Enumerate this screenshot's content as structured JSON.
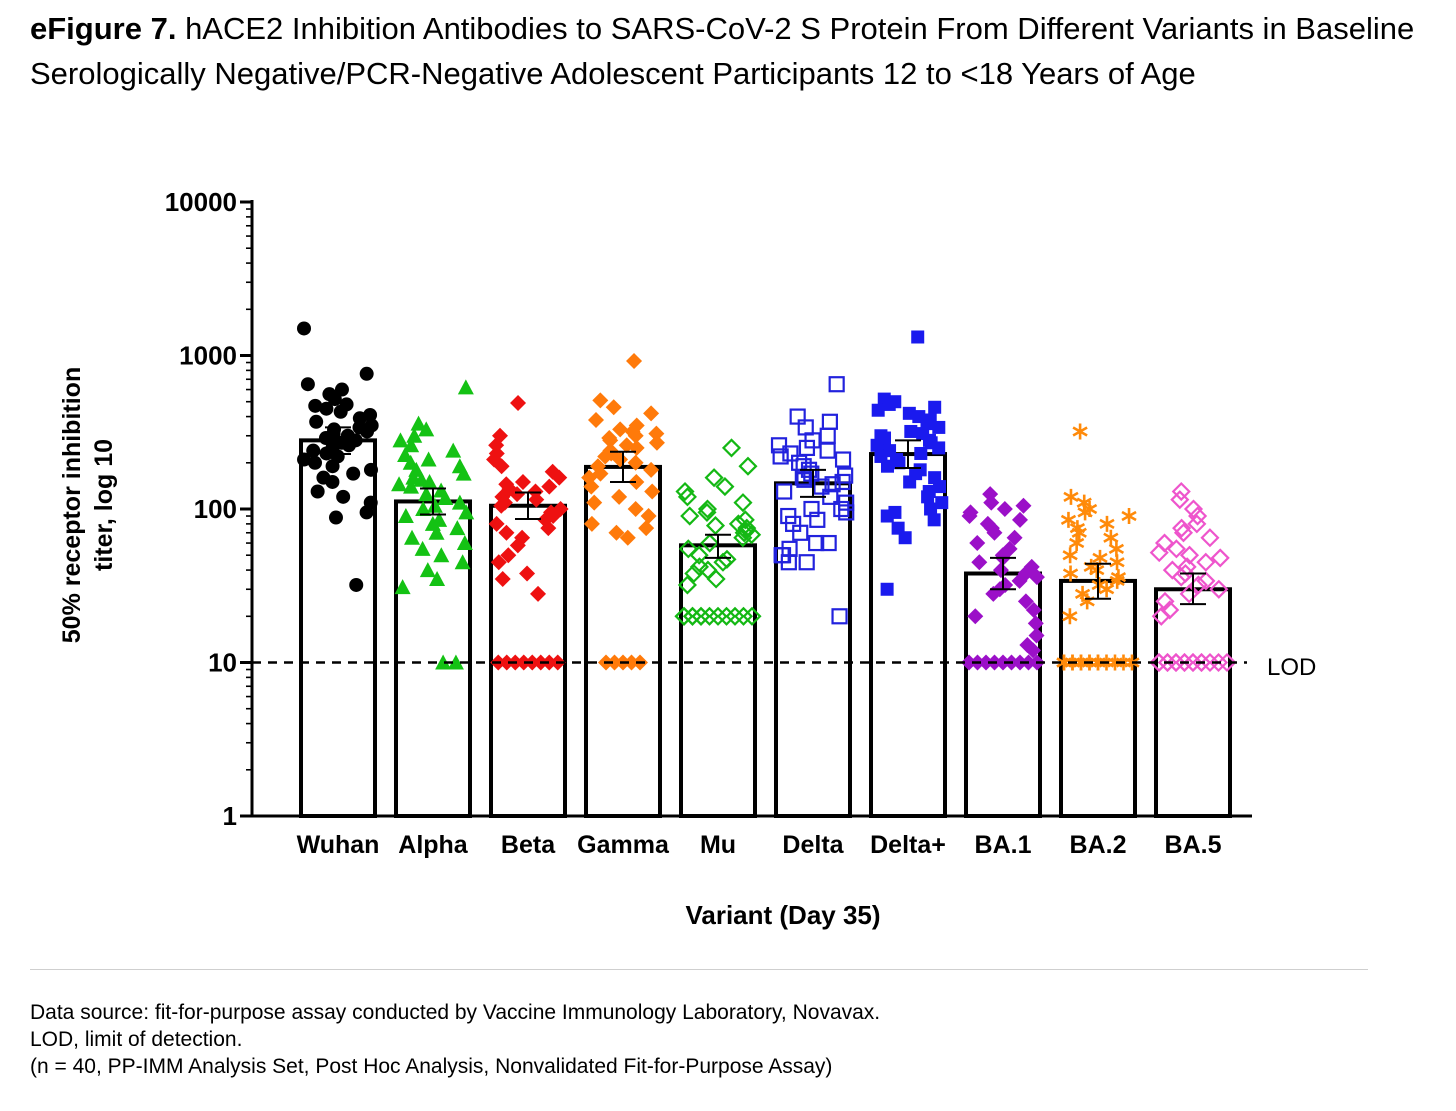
{
  "figure": {
    "label": "eFigure 7.",
    "title": "hACE2 Inhibition Antibodies to SARS-CoV-2 S Protein From Different Variants in Baseline Serologically Negative/PCR-Negative Adolescent Participants 12 to <18 Years of Age"
  },
  "chart_data": {
    "type": "bar",
    "xlabel": "Variant (Day 35)",
    "ylabel_lines": [
      "50% receptor inhibition",
      "titer, log 10"
    ],
    "yscale": "log",
    "ylim": [
      1,
      10000
    ],
    "yticks": [
      1,
      10,
      100,
      1000,
      10000
    ],
    "ytick_labels": [
      "1",
      "10",
      "100",
      "1000",
      "10000"
    ],
    "reference_line": {
      "value": 10,
      "label": "LOD",
      "style": "dashed"
    },
    "categories": [
      "Wuhan",
      "Alpha",
      "Beta",
      "Gamma",
      "Mu",
      "Delta",
      "Delta+",
      "BA.1",
      "BA.2",
      "BA.5"
    ],
    "values": [
      280,
      112,
      105,
      188,
      58,
      147,
      228,
      38,
      34,
      30
    ],
    "error_bars": [
      [
        228,
        340
      ],
      [
        92,
        136
      ],
      [
        86,
        128
      ],
      [
        150,
        236
      ],
      [
        48,
        68
      ],
      [
        120,
        180
      ],
      [
        185,
        280
      ],
      [
        30,
        48
      ],
      [
        26,
        44
      ],
      [
        24,
        38
      ]
    ],
    "series_colors": [
      "#000000",
      "#14c214",
      "#ee1111",
      "#ff7a0a",
      "#14b814",
      "#2222dd",
      "#1a1aee",
      "#9b10c8",
      "#ff8a0a",
      "#ee55cc"
    ],
    "markers": [
      "circle",
      "triangle",
      "diamond",
      "diamond",
      "diamond-open",
      "square-open",
      "square",
      "diamond",
      "asterisk",
      "diamond-open"
    ],
    "points": [
      [
        1500,
        760,
        650,
        600,
        560,
        520,
        480,
        470,
        450,
        430,
        410,
        390,
        370,
        350,
        340,
        330,
        320,
        310,
        300,
        290,
        280,
        270,
        260,
        250,
        240,
        230,
        220,
        210,
        200,
        190,
        180,
        170,
        160,
        150,
        130,
        120,
        110,
        95,
        88,
        32
      ],
      [
        620,
        360,
        330,
        300,
        280,
        260,
        240,
        225,
        210,
        200,
        190,
        180,
        170,
        160,
        155,
        150,
        145,
        140,
        132,
        125,
        118,
        110,
        105,
        100,
        95,
        90,
        85,
        80,
        75,
        70,
        65,
        60,
        55,
        50,
        45,
        40,
        35,
        31,
        10,
        10
      ],
      [
        490,
        300,
        260,
        230,
        210,
        190,
        175,
        160,
        150,
        145,
        140,
        135,
        130,
        125,
        120,
        115,
        110,
        105,
        100,
        95,
        90,
        85,
        80,
        75,
        70,
        65,
        58,
        50,
        45,
        38,
        35,
        28,
        10,
        10,
        10,
        10,
        10,
        10,
        10,
        10
      ],
      [
        920,
        510,
        460,
        420,
        380,
        350,
        330,
        320,
        310,
        300,
        290,
        280,
        270,
        260,
        250,
        240,
        230,
        220,
        210,
        200,
        190,
        180,
        170,
        160,
        150,
        140,
        130,
        120,
        110,
        100,
        90,
        80,
        75,
        70,
        65,
        10,
        10,
        10,
        10,
        10
      ],
      [
        250,
        190,
        160,
        140,
        130,
        120,
        110,
        100,
        95,
        90,
        85,
        80,
        78,
        75,
        72,
        70,
        68,
        65,
        60,
        55,
        50,
        47,
        45,
        42,
        40,
        38,
        35,
        32,
        20,
        20,
        20,
        20,
        20,
        20,
        20,
        20,
        20,
        20,
        20,
        20
      ],
      [
        650,
        400,
        370,
        340,
        300,
        280,
        260,
        250,
        240,
        230,
        220,
        210,
        200,
        190,
        180,
        170,
        165,
        160,
        155,
        150,
        145,
        140,
        130,
        120,
        110,
        100,
        95,
        90,
        85,
        80,
        70,
        60,
        55,
        50,
        45,
        20,
        45,
        50,
        60,
        100
      ],
      [
        1320,
        520,
        500,
        480,
        460,
        440,
        420,
        400,
        380,
        360,
        340,
        320,
        310,
        300,
        290,
        280,
        270,
        260,
        250,
        240,
        230,
        220,
        210,
        200,
        190,
        180,
        170,
        160,
        150,
        140,
        130,
        120,
        110,
        100,
        95,
        90,
        75,
        65,
        30,
        85
      ],
      [
        125,
        110,
        105,
        100,
        95,
        90,
        85,
        80,
        75,
        70,
        65,
        60,
        55,
        50,
        48,
        45,
        42,
        40,
        38,
        36,
        34,
        32,
        30,
        28,
        25,
        22,
        20,
        18,
        15,
        13,
        12,
        10,
        10,
        10,
        10,
        10,
        10,
        10,
        10,
        10
      ],
      [
        320,
        120,
        110,
        100,
        95,
        90,
        85,
        80,
        75,
        70,
        65,
        60,
        55,
        50,
        48,
        45,
        42,
        40,
        38,
        36,
        34,
        32,
        30,
        28,
        25,
        20,
        10,
        10,
        10,
        10,
        10,
        10,
        10,
        10,
        10,
        10,
        10,
        10,
        10,
        10
      ],
      [
        130,
        115,
        100,
        90,
        80,
        75,
        70,
        65,
        60,
        55,
        52,
        50,
        48,
        45,
        42,
        40,
        38,
        36,
        34,
        32,
        30,
        28,
        25,
        22,
        20,
        10,
        10,
        10,
        10,
        10,
        10,
        10,
        10,
        10,
        10,
        10,
        10,
        10,
        10,
        10
      ]
    ]
  },
  "footnotes": [
    "Data source: fit-for-purpose assay conducted by Vaccine Immunology Laboratory, Novavax.",
    "LOD, limit of detection.",
    "(n = 40, PP-IMM Analysis Set, Post Hoc Analysis, Nonvalidated Fit-for-Purpose Assay)"
  ]
}
